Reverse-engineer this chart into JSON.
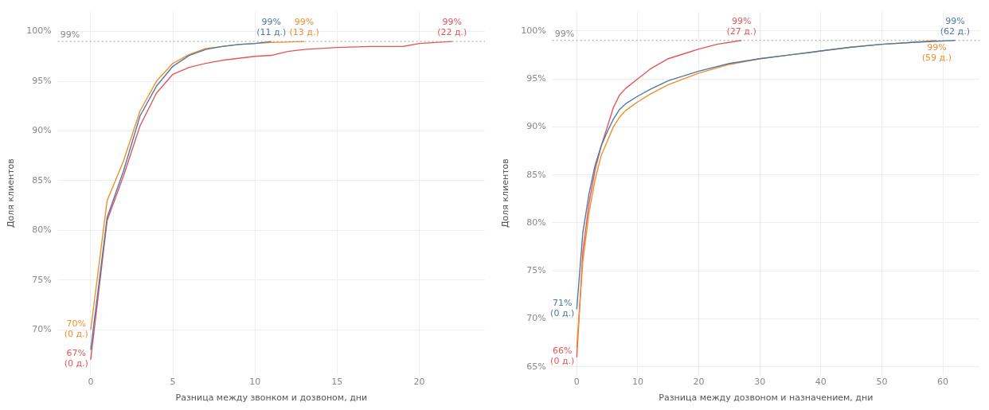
{
  "chart_data": [
    {
      "type": "line",
      "xlabel": "Разница между звонком и дозвоном, дни",
      "ylabel": "Доля клиентов",
      "xlim": [
        -2,
        24
      ],
      "xticks": [
        0,
        5,
        10,
        15,
        20
      ],
      "ylim": [
        65.5,
        102
      ],
      "yticks": [
        {
          "value": 70,
          "label": "70%"
        },
        {
          "value": 75,
          "label": "75%"
        },
        {
          "value": 80,
          "label": "80%"
        },
        {
          "value": 85,
          "label": "85%"
        },
        {
          "value": 90,
          "label": "90%"
        },
        {
          "value": 95,
          "label": "95%"
        },
        {
          "value": 100,
          "label": "100%"
        }
      ],
      "grid": true,
      "marker": "none",
      "line_style": "solid",
      "series": [
        {
          "color": "#4e79a7",
          "x": [
            0,
            1,
            2,
            3,
            4,
            5,
            6,
            7,
            8,
            9,
            10,
            11
          ],
          "values": [
            68,
            81.3,
            86,
            91.5,
            94.5,
            96.5,
            97.6,
            98.2,
            98.5,
            98.7,
            98.8,
            99
          ]
        },
        {
          "color": "#f28e2b",
          "x": [
            0,
            1,
            2,
            3,
            4,
            5,
            6,
            7,
            8,
            9,
            10,
            11,
            13
          ],
          "values": [
            70,
            83,
            87,
            92,
            95,
            96.8,
            97.7,
            98.3,
            98.5,
            98.7,
            98.8,
            98.9,
            99
          ]
        },
        {
          "color": "#e15759",
          "x": [
            0,
            1,
            2,
            3,
            4,
            5,
            6,
            7,
            8,
            9,
            10,
            11,
            12,
            13,
            14,
            15,
            17,
            19,
            20,
            22
          ],
          "values": [
            67,
            81,
            85.5,
            90.5,
            93.8,
            95.7,
            96.4,
            96.8,
            97.1,
            97.3,
            97.5,
            97.6,
            98,
            98.2,
            98.3,
            98.4,
            98.5,
            98.5,
            98.8,
            99
          ]
        }
      ],
      "ref_lines": [
        {
          "axis": "y",
          "value": 99,
          "label": "99%",
          "color": "#999999",
          "line_style": "dotted"
        }
      ],
      "annotations": [
        {
          "text": "99%\n(11 д.)",
          "x": 11,
          "y": 99
        },
        {
          "text": "99%\n(13 д.)",
          "x": 13,
          "y": 99
        },
        {
          "text": "99%\n(22 д.)",
          "x": 22,
          "y": 99
        },
        {
          "text": "70%\n(0 д.)",
          "x": 0,
          "y": 70
        },
        {
          "text": "67%\n(0 д.)",
          "x": 0,
          "y": 67
        }
      ]
    },
    {
      "type": "line",
      "xlabel": "Разница между дозвоном и назначением, дни",
      "ylabel": "Доля клиентов",
      "xlim": [
        -4,
        66
      ],
      "xticks": [
        0,
        10,
        20,
        30,
        40,
        50,
        60
      ],
      "ylim": [
        64.2,
        102
      ],
      "yticks": [
        {
          "value": 65,
          "label": "65%"
        },
        {
          "value": 70,
          "label": "70%"
        },
        {
          "value": 75,
          "label": "75%"
        },
        {
          "value": 80,
          "label": "80%"
        },
        {
          "value": 85,
          "label": "85%"
        },
        {
          "value": 90,
          "label": "90%"
        },
        {
          "value": 95,
          "label": "95%"
        },
        {
          "value": 100,
          "label": "100%"
        }
      ],
      "grid": true,
      "marker": "none",
      "line_style": "solid",
      "series": [
        {
          "color": "#4e79a7",
          "x": [
            0,
            1,
            2,
            3,
            4,
            5,
            6,
            7,
            8,
            10,
            12,
            15,
            20,
            25,
            30,
            35,
            40,
            45,
            50,
            55,
            62
          ],
          "values": [
            71,
            79,
            83,
            86,
            88,
            89.5,
            90.8,
            91.8,
            92.4,
            93.2,
            93.9,
            94.8,
            95.8,
            96.6,
            97.1,
            97.5,
            97.9,
            98.3,
            98.6,
            98.8,
            99
          ]
        },
        {
          "color": "#f28e2b",
          "x": [
            0,
            1,
            2,
            3,
            4,
            5,
            6,
            7,
            8,
            10,
            12,
            15,
            20,
            25,
            30,
            35,
            40,
            45,
            50,
            55,
            59
          ],
          "values": [
            67,
            76,
            81,
            84.5,
            87,
            88.5,
            90,
            91,
            91.7,
            92.6,
            93.4,
            94.4,
            95.6,
            96.5,
            97.1,
            97.5,
            97.9,
            98.3,
            98.6,
            98.8,
            99
          ]
        },
        {
          "color": "#e15759",
          "x": [
            0,
            1,
            2,
            3,
            4,
            5,
            6,
            7,
            8,
            10,
            12,
            15,
            18,
            20,
            23,
            27
          ],
          "values": [
            66,
            77,
            82,
            85.5,
            88,
            90,
            92,
            93.3,
            94,
            95,
            96,
            97.1,
            97.7,
            98.1,
            98.6,
            99
          ]
        }
      ],
      "ref_lines": [
        {
          "axis": "y",
          "value": 99,
          "label": "99%",
          "color": "#999999",
          "line_style": "dotted"
        }
      ],
      "annotations": [
        {
          "text": "99%\n(27 д.)",
          "x": 27,
          "y": 99
        },
        {
          "text": "99%\n(62 д.)",
          "x": 62,
          "y": 99
        },
        {
          "text": "99%\n(59 д.)",
          "x": 59,
          "y": 99
        },
        {
          "text": "71%\n(0 д.)",
          "x": 0,
          "y": 71
        },
        {
          "text": "66%\n(0 д.)",
          "x": 0,
          "y": 66
        }
      ]
    }
  ]
}
